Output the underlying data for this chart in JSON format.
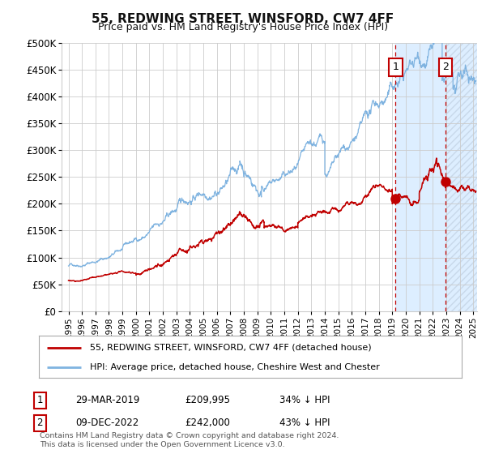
{
  "title": "55, REDWING STREET, WINSFORD, CW7 4FF",
  "subtitle": "Price paid vs. HM Land Registry's House Price Index (HPI)",
  "hpi_label": "HPI: Average price, detached house, Cheshire West and Chester",
  "price_label": "55, REDWING STREET, WINSFORD, CW7 4FF (detached house)",
  "footer": "Contains HM Land Registry data © Crown copyright and database right 2024.\nThis data is licensed under the Open Government Licence v3.0.",
  "annotation1": {
    "label": "1",
    "date": "29-MAR-2019",
    "price": "£209,995",
    "pct": "34% ↓ HPI",
    "x_year": 2019.24
  },
  "annotation2": {
    "label": "2",
    "date": "09-DEC-2022",
    "price": "£242,000",
    "pct": "43% ↓ HPI",
    "x_year": 2022.94
  },
  "ylim": [
    0,
    500000
  ],
  "xlim_start": 1994.5,
  "xlim_end": 2025.3,
  "hpi_color": "#7fb3e0",
  "price_color": "#c00000",
  "grid_color": "#cccccc",
  "bg_color": "#ffffff",
  "shaded_bg": "#ddeeff",
  "ann_box_color": "#c00000"
}
